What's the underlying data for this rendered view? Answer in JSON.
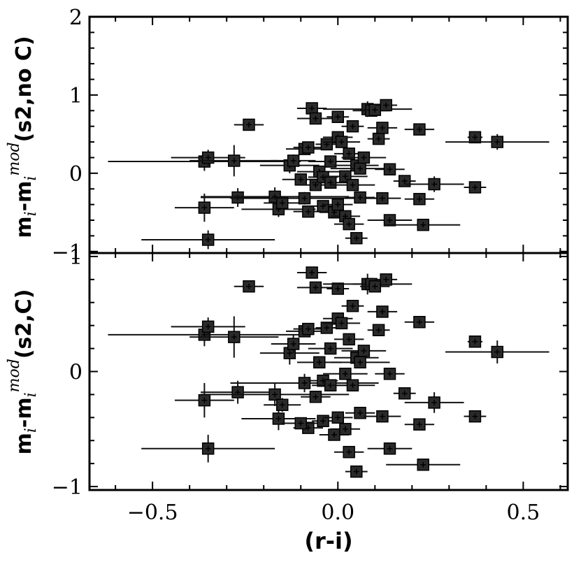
{
  "chart_data": [
    {
      "type": "scatter",
      "panel": "top",
      "ylabel_parts": [
        "m",
        "i",
        "-m",
        "i",
        "mod",
        "(s2,no C)"
      ],
      "xlim": [
        -0.67,
        0.62
      ],
      "ylim": [
        -1.02,
        2.0
      ],
      "yticks": [
        {
          "v": -1,
          "label": "−1"
        },
        {
          "v": 0,
          "label": "0"
        },
        {
          "v": 1,
          "label": "1"
        },
        {
          "v": 2,
          "label": "2"
        }
      ],
      "grid": false,
      "points": [
        {
          "x": -0.36,
          "y": 0.15,
          "xe": 0.26,
          "ye": 0.12
        },
        {
          "x": -0.35,
          "y": 0.2,
          "xe": 0.1,
          "ye": 0.1
        },
        {
          "x": -0.36,
          "y": -0.44,
          "xe": 0.08,
          "ye": 0.18
        },
        {
          "x": -0.35,
          "y": -0.85,
          "xe": 0.18,
          "ye": 0.12
        },
        {
          "x": -0.28,
          "y": 0.16,
          "xe": 0.12,
          "ye": 0.2
        },
        {
          "x": -0.27,
          "y": -0.31,
          "xe": 0.1,
          "ye": 0.12
        },
        {
          "x": -0.24,
          "y": 0.62,
          "xe": 0.04,
          "ye": 0.05
        },
        {
          "x": -0.17,
          "y": -0.3,
          "xe": 0.2,
          "ye": 0.12
        },
        {
          "x": -0.16,
          "y": -0.46,
          "xe": 0.1,
          "ye": 0.1
        },
        {
          "x": -0.13,
          "y": 0.1,
          "xe": 0.08,
          "ye": 0.1
        },
        {
          "x": -0.12,
          "y": 0.16,
          "xe": 0.06,
          "ye": 0.08
        },
        {
          "x": -0.15,
          "y": -0.38,
          "xe": 0.05,
          "ye": 0.06
        },
        {
          "x": -0.09,
          "y": -0.32,
          "xe": 0.2,
          "ye": 0.08
        },
        {
          "x": -0.08,
          "y": -0.49,
          "xe": 0.04,
          "ye": 0.05
        },
        {
          "x": -0.09,
          "y": 0.31,
          "xe": 0.05,
          "ye": 0.05
        },
        {
          "x": -0.08,
          "y": 0.33,
          "xe": 0.04,
          "ye": 0.05
        },
        {
          "x": -0.1,
          "y": -0.08,
          "xe": 0.05,
          "ye": 0.06
        },
        {
          "x": -0.07,
          "y": 0.83,
          "xe": 0.04,
          "ye": 0.06
        },
        {
          "x": -0.06,
          "y": 0.7,
          "xe": 0.05,
          "ye": 0.06
        },
        {
          "x": -0.06,
          "y": -0.15,
          "xe": 0.04,
          "ye": 0.06
        },
        {
          "x": -0.05,
          "y": 0.02,
          "xe": 0.06,
          "ye": 0.06
        },
        {
          "x": -0.04,
          "y": -0.42,
          "xe": 0.03,
          "ye": 0.06
        },
        {
          "x": -0.04,
          "y": -0.05,
          "xe": 0.04,
          "ye": 0.05
        },
        {
          "x": -0.03,
          "y": 0.37,
          "xe": 0.03,
          "ye": 0.05
        },
        {
          "x": -0.02,
          "y": 0.15,
          "xe": 0.06,
          "ye": 0.06
        },
        {
          "x": -0.02,
          "y": -0.12,
          "xe": 0.05,
          "ye": 0.05
        },
        {
          "x": -0.01,
          "y": -0.5,
          "xe": 0.04,
          "ye": 0.06
        },
        {
          "x": 0.0,
          "y": 0.72,
          "xe": 0.03,
          "ye": 0.06
        },
        {
          "x": 0.0,
          "y": 0.46,
          "xe": 0.04,
          "ye": 0.06
        },
        {
          "x": 0.0,
          "y": -0.4,
          "xe": 0.04,
          "ye": 0.06
        },
        {
          "x": 0.01,
          "y": 0.4,
          "xe": 0.05,
          "ye": 0.05
        },
        {
          "x": 0.02,
          "y": -0.04,
          "xe": 0.06,
          "ye": 0.06
        },
        {
          "x": 0.02,
          "y": -0.55,
          "xe": 0.04,
          "ye": 0.05
        },
        {
          "x": 0.03,
          "y": 0.25,
          "xe": 0.04,
          "ye": 0.05
        },
        {
          "x": 0.03,
          "y": -0.65,
          "xe": 0.04,
          "ye": 0.06
        },
        {
          "x": 0.04,
          "y": 0.6,
          "xe": 0.03,
          "ye": 0.06
        },
        {
          "x": 0.04,
          "y": -0.15,
          "xe": 0.06,
          "ye": 0.06
        },
        {
          "x": 0.05,
          "y": 0.1,
          "xe": 0.06,
          "ye": 0.06
        },
        {
          "x": 0.05,
          "y": -0.83,
          "xe": 0.03,
          "ye": 0.05
        },
        {
          "x": 0.06,
          "y": -0.31,
          "xe": 0.04,
          "ye": 0.06
        },
        {
          "x": 0.06,
          "y": 0.06,
          "xe": 0.08,
          "ye": 0.06
        },
        {
          "x": 0.07,
          "y": 0.2,
          "xe": 0.06,
          "ye": 0.06
        },
        {
          "x": 0.08,
          "y": 0.82,
          "xe": 0.12,
          "ye": 0.1
        },
        {
          "x": 0.09,
          "y": 0.8,
          "xe": 0.05,
          "ye": 0.06
        },
        {
          "x": 0.1,
          "y": 0.81,
          "xe": 0.04,
          "ye": 0.05
        },
        {
          "x": 0.11,
          "y": 0.44,
          "xe": 0.03,
          "ye": 0.06
        },
        {
          "x": 0.12,
          "y": 0.58,
          "xe": 0.04,
          "ye": 0.06
        },
        {
          "x": 0.12,
          "y": -0.32,
          "xe": 0.05,
          "ye": 0.06
        },
        {
          "x": 0.13,
          "y": 0.87,
          "xe": 0.03,
          "ye": 0.06
        },
        {
          "x": 0.14,
          "y": 0.05,
          "xe": 0.04,
          "ye": 0.06
        },
        {
          "x": 0.14,
          "y": -0.6,
          "xe": 0.06,
          "ye": 0.06
        },
        {
          "x": 0.18,
          "y": -0.1,
          "xe": 0.03,
          "ye": 0.06
        },
        {
          "x": 0.22,
          "y": 0.56,
          "xe": 0.04,
          "ye": 0.05
        },
        {
          "x": 0.22,
          "y": -0.33,
          "xe": 0.04,
          "ye": 0.06
        },
        {
          "x": 0.23,
          "y": -0.66,
          "xe": 0.1,
          "ye": 0.06
        },
        {
          "x": 0.26,
          "y": -0.14,
          "xe": 0.08,
          "ye": 0.1
        },
        {
          "x": 0.37,
          "y": 0.46,
          "xe": 0.02,
          "ye": 0.05
        },
        {
          "x": 0.37,
          "y": -0.18,
          "xe": 0.03,
          "ye": 0.05
        },
        {
          "x": 0.43,
          "y": 0.4,
          "xe": 0.14,
          "ye": 0.1
        }
      ]
    },
    {
      "type": "scatter",
      "panel": "bottom",
      "ylabel_parts": [
        "m",
        "i",
        "-m",
        "i",
        "mod",
        "(s2,C)"
      ],
      "xlabel": "(r-i)",
      "xlim": [
        -0.67,
        0.62
      ],
      "ylim": [
        -1.03,
        1.03
      ],
      "xticks": [
        {
          "v": -0.5,
          "label": "−0.5"
        },
        {
          "v": 0.0,
          "label": "0.0"
        },
        {
          "v": 0.5,
          "label": "0.5"
        }
      ],
      "yticks": [
        {
          "v": -1,
          "label": "−1"
        },
        {
          "v": 0,
          "label": "0"
        },
        {
          "v": 1,
          "label": "1"
        }
      ],
      "grid": false,
      "points": [
        {
          "x": -0.36,
          "y": 0.32,
          "xe": 0.26,
          "ye": 0.1
        },
        {
          "x": -0.35,
          "y": 0.39,
          "xe": 0.1,
          "ye": 0.08
        },
        {
          "x": -0.36,
          "y": -0.25,
          "xe": 0.08,
          "ye": 0.15
        },
        {
          "x": -0.35,
          "y": -0.67,
          "xe": 0.18,
          "ye": 0.12
        },
        {
          "x": -0.28,
          "y": 0.3,
          "xe": 0.12,
          "ye": 0.18
        },
        {
          "x": -0.27,
          "y": -0.18,
          "xe": 0.1,
          "ye": 0.1
        },
        {
          "x": -0.24,
          "y": 0.74,
          "xe": 0.04,
          "ye": 0.04
        },
        {
          "x": -0.17,
          "y": -0.2,
          "xe": 0.2,
          "ye": 0.1
        },
        {
          "x": -0.16,
          "y": -0.41,
          "xe": 0.1,
          "ye": 0.1
        },
        {
          "x": -0.13,
          "y": 0.16,
          "xe": 0.08,
          "ye": 0.1
        },
        {
          "x": -0.12,
          "y": 0.24,
          "xe": 0.06,
          "ye": 0.08
        },
        {
          "x": -0.15,
          "y": -0.29,
          "xe": 0.05,
          "ye": 0.06
        },
        {
          "x": -0.09,
          "y": -0.1,
          "xe": 0.2,
          "ye": 0.08
        },
        {
          "x": -0.08,
          "y": -0.49,
          "xe": 0.04,
          "ye": 0.05
        },
        {
          "x": -0.09,
          "y": 0.35,
          "xe": 0.05,
          "ye": 0.05
        },
        {
          "x": -0.08,
          "y": 0.37,
          "xe": 0.04,
          "ye": 0.05
        },
        {
          "x": -0.1,
          "y": -0.45,
          "xe": 0.05,
          "ye": 0.05
        },
        {
          "x": -0.07,
          "y": 0.86,
          "xe": 0.04,
          "ye": 0.05
        },
        {
          "x": -0.06,
          "y": 0.73,
          "xe": 0.05,
          "ye": 0.05
        },
        {
          "x": -0.06,
          "y": -0.22,
          "xe": 0.04,
          "ye": 0.05
        },
        {
          "x": -0.05,
          "y": 0.08,
          "xe": 0.06,
          "ye": 0.05
        },
        {
          "x": -0.04,
          "y": -0.43,
          "xe": 0.03,
          "ye": 0.05
        },
        {
          "x": -0.04,
          "y": -0.08,
          "xe": 0.04,
          "ye": 0.05
        },
        {
          "x": -0.03,
          "y": 0.38,
          "xe": 0.03,
          "ye": 0.05
        },
        {
          "x": -0.02,
          "y": 0.2,
          "xe": 0.06,
          "ye": 0.05
        },
        {
          "x": -0.02,
          "y": -0.12,
          "xe": 0.05,
          "ye": 0.05
        },
        {
          "x": -0.01,
          "y": -0.55,
          "xe": 0.04,
          "ye": 0.05
        },
        {
          "x": 0.0,
          "y": 0.72,
          "xe": 0.03,
          "ye": 0.05
        },
        {
          "x": 0.0,
          "y": 0.46,
          "xe": 0.04,
          "ye": 0.05
        },
        {
          "x": 0.0,
          "y": -0.4,
          "xe": 0.04,
          "ye": 0.05
        },
        {
          "x": 0.01,
          "y": 0.42,
          "xe": 0.05,
          "ye": 0.05
        },
        {
          "x": 0.02,
          "y": -0.02,
          "xe": 0.06,
          "ye": 0.05
        },
        {
          "x": 0.02,
          "y": -0.5,
          "xe": 0.04,
          "ye": 0.05
        },
        {
          "x": 0.03,
          "y": 0.28,
          "xe": 0.04,
          "ye": 0.05
        },
        {
          "x": 0.03,
          "y": -0.7,
          "xe": 0.04,
          "ye": 0.05
        },
        {
          "x": 0.04,
          "y": 0.57,
          "xe": 0.03,
          "ye": 0.05
        },
        {
          "x": 0.04,
          "y": -0.12,
          "xe": 0.06,
          "ye": 0.05
        },
        {
          "x": 0.05,
          "y": 0.12,
          "xe": 0.06,
          "ye": 0.05
        },
        {
          "x": 0.05,
          "y": -0.87,
          "xe": 0.03,
          "ye": 0.05
        },
        {
          "x": 0.06,
          "y": -0.36,
          "xe": 0.04,
          "ye": 0.05
        },
        {
          "x": 0.06,
          "y": 0.08,
          "xe": 0.08,
          "ye": 0.05
        },
        {
          "x": 0.07,
          "y": 0.18,
          "xe": 0.06,
          "ye": 0.05
        },
        {
          "x": 0.08,
          "y": 0.76,
          "xe": 0.12,
          "ye": 0.09
        },
        {
          "x": 0.09,
          "y": 0.76,
          "xe": 0.05,
          "ye": 0.05
        },
        {
          "x": 0.1,
          "y": 0.74,
          "xe": 0.04,
          "ye": 0.05
        },
        {
          "x": 0.11,
          "y": 0.36,
          "xe": 0.03,
          "ye": 0.05
        },
        {
          "x": 0.12,
          "y": 0.52,
          "xe": 0.04,
          "ye": 0.05
        },
        {
          "x": 0.12,
          "y": -0.39,
          "xe": 0.05,
          "ye": 0.05
        },
        {
          "x": 0.13,
          "y": 0.8,
          "xe": 0.03,
          "ye": 0.05
        },
        {
          "x": 0.14,
          "y": -0.02,
          "xe": 0.04,
          "ye": 0.05
        },
        {
          "x": 0.14,
          "y": -0.67,
          "xe": 0.06,
          "ye": 0.05
        },
        {
          "x": 0.18,
          "y": -0.19,
          "xe": 0.03,
          "ye": 0.05
        },
        {
          "x": 0.22,
          "y": 0.43,
          "xe": 0.04,
          "ye": 0.05
        },
        {
          "x": 0.22,
          "y": -0.46,
          "xe": 0.04,
          "ye": 0.05
        },
        {
          "x": 0.23,
          "y": -0.81,
          "xe": 0.1,
          "ye": 0.05
        },
        {
          "x": 0.26,
          "y": -0.27,
          "xe": 0.08,
          "ye": 0.09
        },
        {
          "x": 0.37,
          "y": 0.26,
          "xe": 0.02,
          "ye": 0.05
        },
        {
          "x": 0.37,
          "y": -0.39,
          "xe": 0.03,
          "ye": 0.05
        },
        {
          "x": 0.43,
          "y": 0.17,
          "xe": 0.14,
          "ye": 0.1
        }
      ]
    }
  ]
}
